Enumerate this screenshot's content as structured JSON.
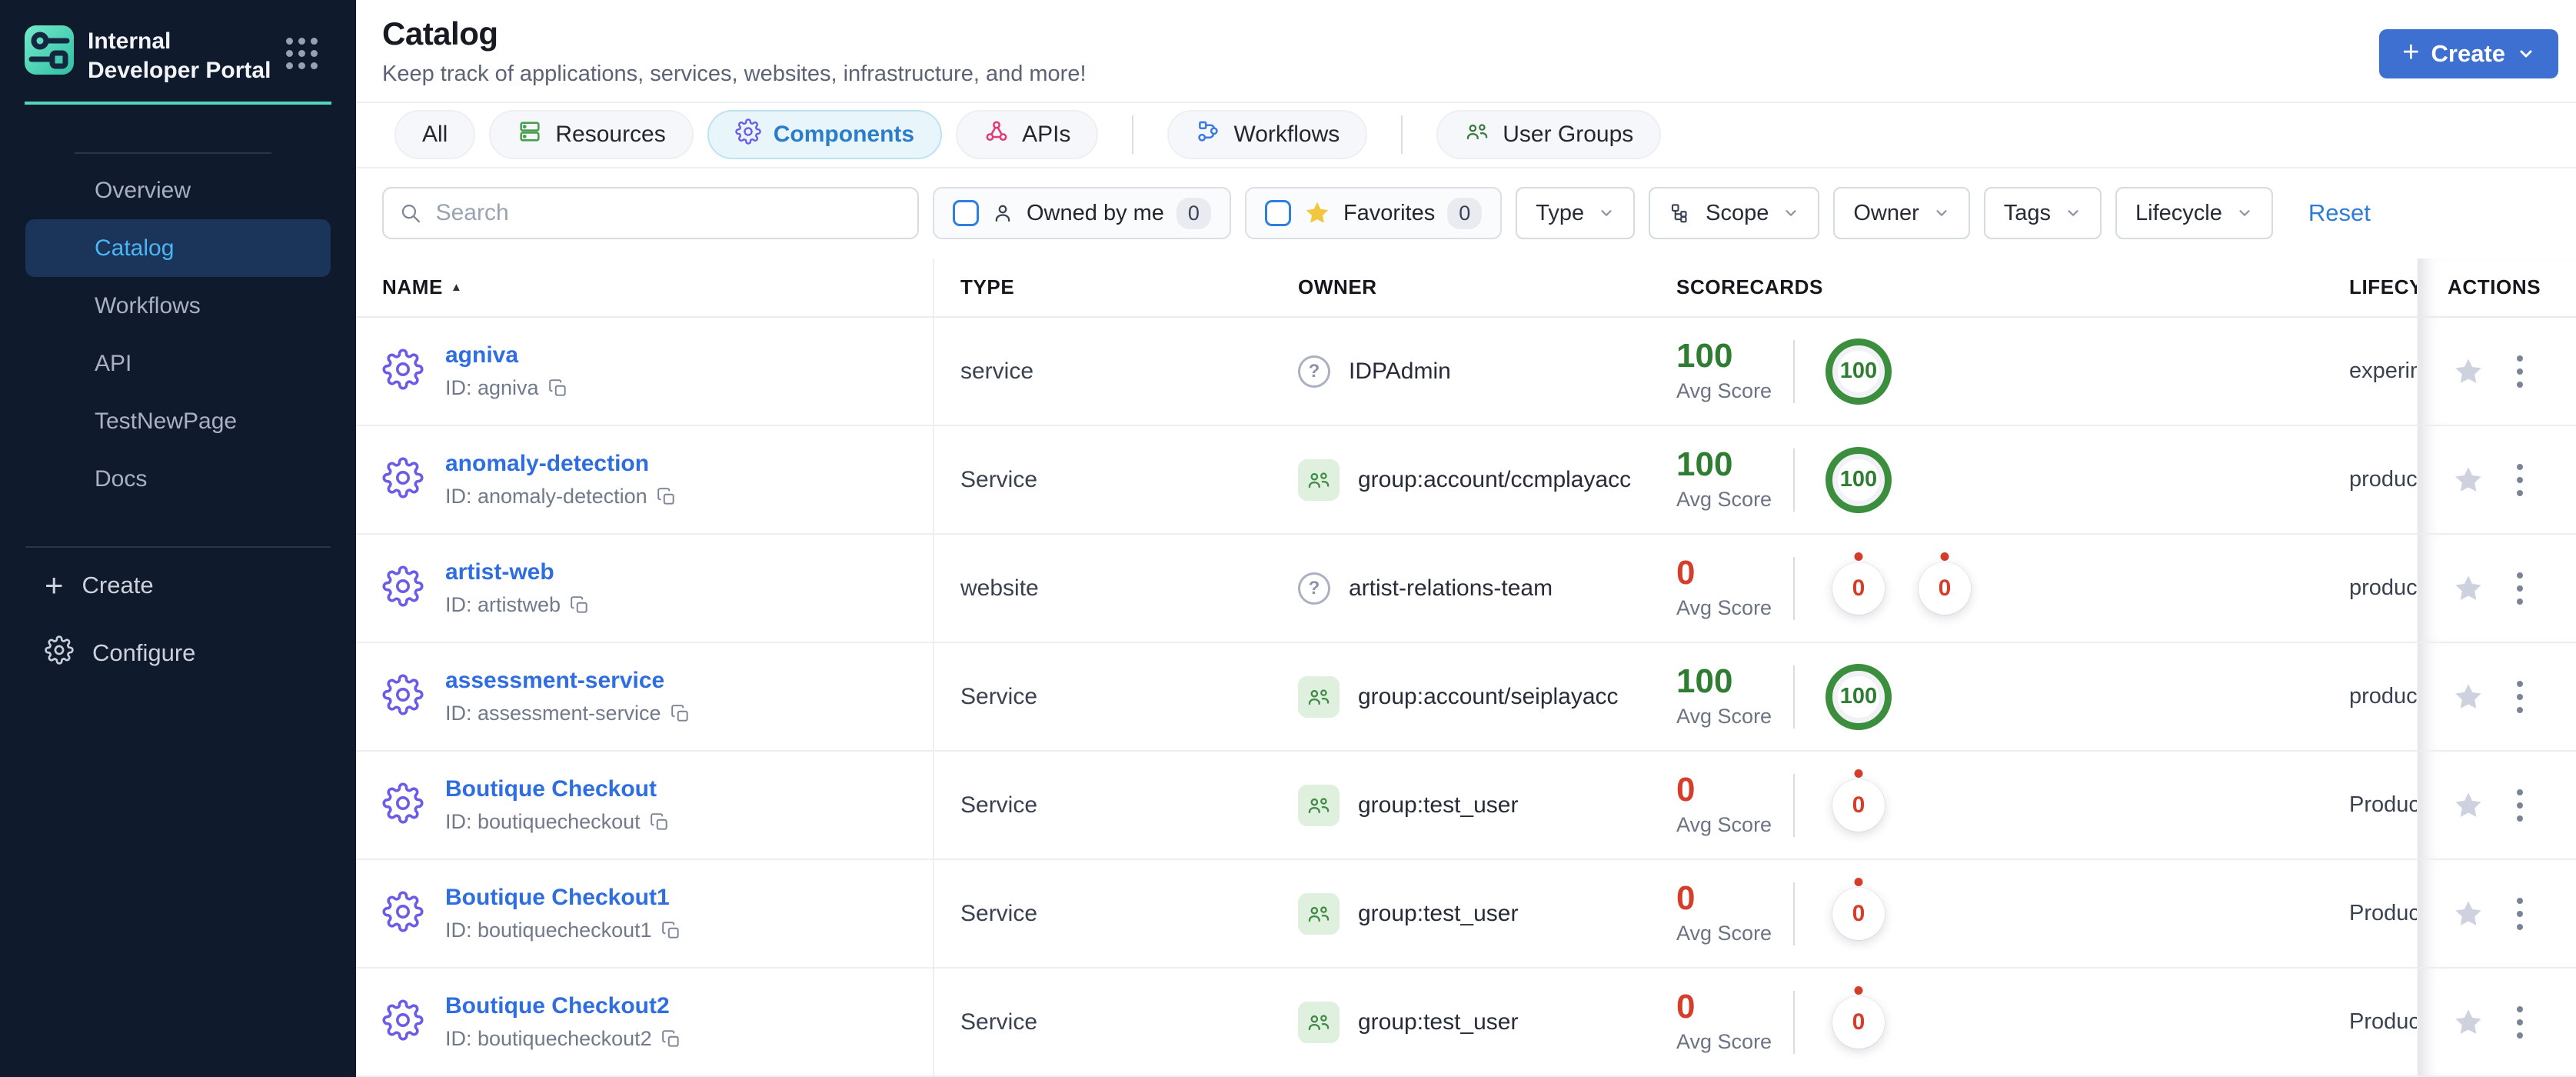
{
  "colors": {
    "sidebar_bg": "#0f1b2d",
    "brand_teal": "#54d6ba",
    "active_nav_bg": "#1b3459",
    "active_nav_text": "#4db5f3",
    "primary_button_blue": "#3e70d1",
    "link_blue": "#2e6ee0",
    "tab_active_text": "#2b7cc9",
    "tab_active_bg": "#e8f6fc",
    "score_green": "#2e7d32",
    "score_red": "#d43e2b",
    "gear_indigo": "#6a5ce8",
    "star_yellow": "#f3c63f",
    "resources_green": "#4a9e4f",
    "apis_pink": "#e13d74",
    "workflows_blue": "#3b7ce0",
    "groups_green": "#3a7a3e"
  },
  "sidebar": {
    "brand_title": "Internal Developer Portal",
    "nav": [
      {
        "label": "Overview"
      },
      {
        "label": "Catalog",
        "active": true
      },
      {
        "label": "Workflows"
      },
      {
        "label": "API"
      },
      {
        "label": "TestNewPage"
      },
      {
        "label": "Docs"
      }
    ],
    "create_label": "Create",
    "configure_label": "Configure"
  },
  "header": {
    "title": "Catalog",
    "subtitle": "Keep track of applications, services, websites, infrastructure, and more!",
    "create_button": "Create"
  },
  "tabs": [
    {
      "label": "All"
    },
    {
      "label": "Resources",
      "icon": "resources-icon"
    },
    {
      "label": "Components",
      "icon": "components-gear-icon",
      "active": true
    },
    {
      "label": "APIs",
      "icon": "apis-icon"
    },
    {
      "label": "Workflows",
      "icon": "workflows-icon"
    },
    {
      "label": "User Groups",
      "icon": "user-groups-icon"
    }
  ],
  "filters": {
    "search_placeholder": "Search",
    "owned_by_me": {
      "label": "Owned by me",
      "count": "0"
    },
    "favorites": {
      "label": "Favorites",
      "count": "0"
    },
    "dropdowns": [
      {
        "label": "Type"
      },
      {
        "label": "Scope",
        "icon": "tree-icon"
      },
      {
        "label": "Owner"
      },
      {
        "label": "Tags"
      },
      {
        "label": "Lifecycle"
      }
    ],
    "reset_label": "Reset"
  },
  "table": {
    "columns": {
      "name": "NAME",
      "type": "TYPE",
      "owner": "OWNER",
      "scorecards": "SCORECARDS",
      "lifecycle": "LIFECYCLE",
      "actions": "ACTIONS"
    },
    "sort": {
      "column": "NAME",
      "direction": "asc"
    },
    "avg_score_label": "Avg Score",
    "rows": [
      {
        "name": "agniva",
        "id": "ID: agniva",
        "type": "service",
        "owner_label": "IDPAdmin",
        "owner_icon": "help-circle-icon",
        "avg_score": "100",
        "score_tone": "green",
        "circles": [
          {
            "value": "100",
            "tone": "green"
          }
        ],
        "lifecycle": "experimental"
      },
      {
        "name": "anomaly-detection",
        "id": "ID: anomaly-detection",
        "type": "Service",
        "owner_label": "group:account/ccmplayacc",
        "owner_icon": "user-group-icon",
        "avg_score": "100",
        "score_tone": "green",
        "circles": [
          {
            "value": "100",
            "tone": "green"
          }
        ],
        "lifecycle": "production"
      },
      {
        "name": "artist-web",
        "id": "ID: artistweb",
        "type": "website",
        "owner_label": "artist-relations-team",
        "owner_icon": "help-circle-icon",
        "avg_score": "0",
        "score_tone": "red",
        "circles": [
          {
            "value": "0",
            "tone": "zero"
          },
          {
            "value": "0",
            "tone": "zero"
          }
        ],
        "lifecycle": "production"
      },
      {
        "name": "assessment-service",
        "id": "ID: assessment-service",
        "type": "Service",
        "owner_label": "group:account/seiplayacc",
        "owner_icon": "user-group-icon",
        "avg_score": "100",
        "score_tone": "green",
        "circles": [
          {
            "value": "100",
            "tone": "green"
          }
        ],
        "lifecycle": "production"
      },
      {
        "name": "Boutique Checkout",
        "id": "ID: boutiquecheckout",
        "type": "Service",
        "owner_label": "group:test_user",
        "owner_icon": "user-group-icon",
        "avg_score": "0",
        "score_tone": "red",
        "circles": [
          {
            "value": "0",
            "tone": "zero"
          }
        ],
        "lifecycle": "Production"
      },
      {
        "name": "Boutique Checkout1",
        "id": "ID: boutiquecheckout1",
        "type": "Service",
        "owner_label": "group:test_user",
        "owner_icon": "user-group-icon",
        "avg_score": "0",
        "score_tone": "red",
        "circles": [
          {
            "value": "0",
            "tone": "zero"
          }
        ],
        "lifecycle": "Production"
      },
      {
        "name": "Boutique Checkout2",
        "id": "ID: boutiquecheckout2",
        "type": "Service",
        "owner_label": "group:test_user",
        "owner_icon": "user-group-icon",
        "avg_score": "0",
        "score_tone": "red",
        "circles": [
          {
            "value": "0",
            "tone": "zero"
          }
        ],
        "lifecycle": "Production"
      }
    ]
  }
}
